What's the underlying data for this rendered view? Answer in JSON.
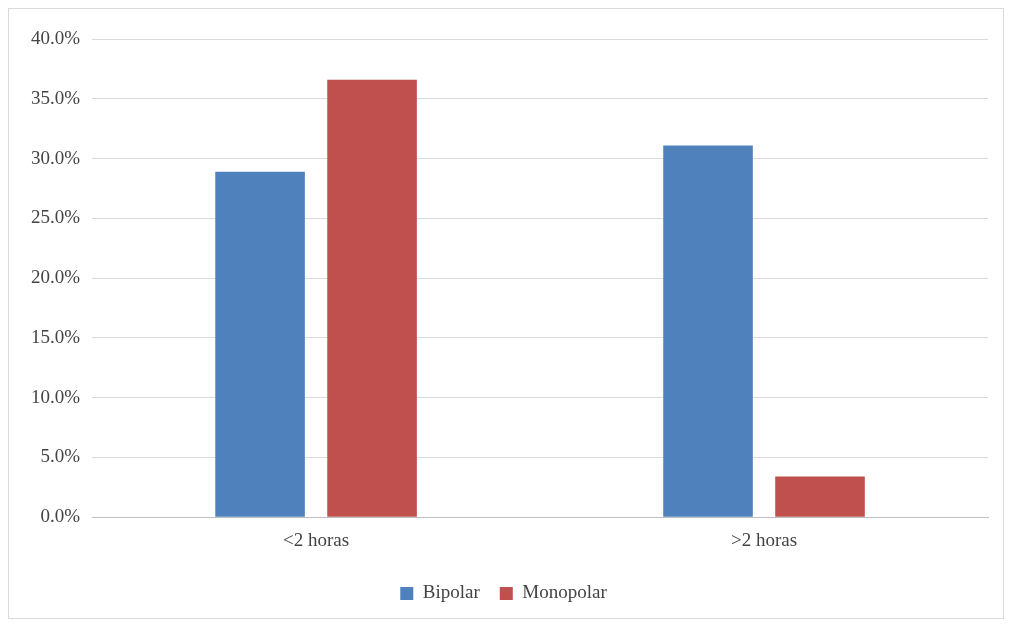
{
  "chart_data": {
    "type": "bar",
    "categories": [
      "<2 horas",
      ">2 horas"
    ],
    "series": [
      {
        "name": "Bipolar",
        "color": "#4f81bd",
        "values": [
          28.9,
          31.1
        ]
      },
      {
        "name": "Monopolar",
        "color": "#c0504d",
        "values": [
          36.6,
          3.4
        ]
      }
    ],
    "ylim": [
      0,
      40
    ],
    "yticks": [
      {
        "value": 0,
        "label": "0.0%"
      },
      {
        "value": 5,
        "label": "5.0%"
      },
      {
        "value": 10,
        "label": "10.0%"
      },
      {
        "value": 15,
        "label": "15.0%"
      },
      {
        "value": 20,
        "label": "20.0%"
      },
      {
        "value": 25,
        "label": "25.0%"
      },
      {
        "value": 30,
        "label": "30.0%"
      },
      {
        "value": 35,
        "label": "35.0%"
      },
      {
        "value": 40,
        "label": "40.0%"
      }
    ],
    "grid": "y",
    "legend": "bottom"
  }
}
